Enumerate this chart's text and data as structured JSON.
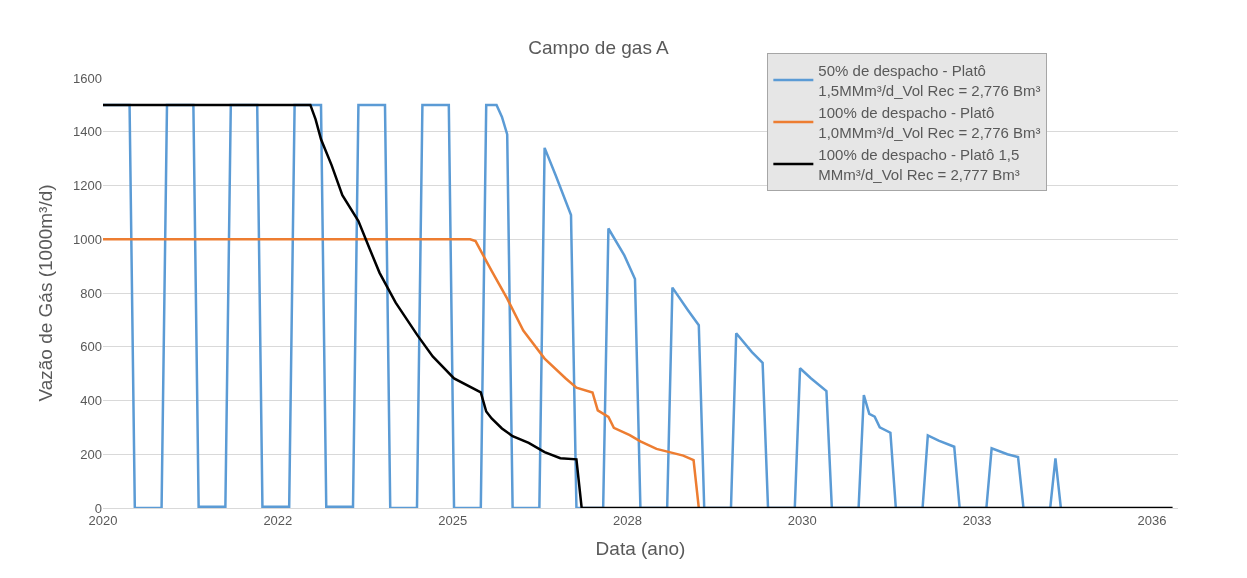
{
  "chart_data": {
    "type": "line",
    "title": "Campo de gas A",
    "xlabel": "Data (ano)",
    "ylabel": "Vazão de Gás (1000m³/d)",
    "xlim": [
      "2020-01-01",
      "2036-11-01"
    ],
    "xticks": [
      {
        "value": "2020-01-01",
        "label": "2020"
      },
      {
        "value": "2022-09-27",
        "label": "2022"
      },
      {
        "value": "2025-06-23",
        "label": "2025"
      },
      {
        "value": "2028-03-19",
        "label": "2028"
      },
      {
        "value": "2030-12-14",
        "label": "2030"
      },
      {
        "value": "2033-09-09",
        "label": "2033"
      },
      {
        "value": "2036-06-05",
        "label": "2036"
      }
    ],
    "ylim": [
      0,
      1600
    ],
    "yticks": [
      0,
      200,
      400,
      600,
      800,
      1000,
      1200,
      1400,
      1600
    ],
    "grid": "y",
    "legend": "top right",
    "marker": "none",
    "line_style": "solid",
    "series": [
      {
        "name": "50% de despacho - Platô 1,5MMm³/d_Vol Rec = 2,776 Bm³",
        "color": "#5b9bd5",
        "x": [
          "2020-01",
          "2020-06",
          "2020-07",
          "2020-12",
          "2021-01",
          "2021-06",
          "2021-07",
          "2021-12",
          "2022-01",
          "2022-06",
          "2022-07",
          "2022-12",
          "2023-01",
          "2023-06",
          "2023-07",
          "2023-12",
          "2024-01",
          "2024-06",
          "2024-07",
          "2024-12",
          "2025-01",
          "2025-06",
          "2025-07",
          "2025-12",
          "2026-01",
          "2026-03",
          "2026-04",
          "2026-05",
          "2026-06",
          "2026-11",
          "2026-12",
          "2027-02",
          "2027-05",
          "2027-06",
          "2027-11",
          "2027-12",
          "2028-03",
          "2028-05",
          "2028-06",
          "2028-11",
          "2028-12",
          "2029-03",
          "2029-05",
          "2029-06",
          "2029-11",
          "2029-12",
          "2030-03",
          "2030-05",
          "2030-06",
          "2030-11",
          "2030-12",
          "2031-02",
          "2031-05",
          "2031-06",
          "2031-11",
          "2031-12",
          "2032-01",
          "2032-02",
          "2032-03",
          "2032-05",
          "2032-06",
          "2032-11",
          "2032-12",
          "2033-02",
          "2033-05",
          "2033-06",
          "2033-11",
          "2033-12",
          "2034-03",
          "2034-05",
          "2034-06",
          "2034-11",
          "2034-12",
          "2035-01"
        ],
        "values": [
          1500,
          1500,
          0,
          0,
          1500,
          1500,
          5,
          5,
          1500,
          1500,
          5,
          5,
          1500,
          1500,
          5,
          5,
          1500,
          1500,
          0,
          0,
          1500,
          1500,
          0,
          0,
          1500,
          1500,
          1455,
          1390,
          0,
          0,
          1340,
          1240,
          1090,
          0,
          0,
          1040,
          940,
          852,
          0,
          0,
          820,
          735,
          680,
          0,
          0,
          650,
          580,
          540,
          0,
          0,
          520,
          483,
          435,
          0,
          0,
          420,
          350,
          340,
          300,
          280,
          0,
          0,
          270,
          251,
          228,
          0,
          0,
          222,
          200,
          190,
          0,
          0,
          185,
          0
        ]
      },
      {
        "name": "100% de despacho - Platô 1,0MMm³/d_Vol Rec = 2,776 Bm³",
        "color": "#ed7d31",
        "x": [
          "2020-01",
          "2025-10",
          "2025-11",
          "2026-02",
          "2026-05",
          "2026-08",
          "2026-12",
          "2027-04",
          "2027-06",
          "2027-09",
          "2027-10",
          "2027-12",
          "2028-01",
          "2028-04",
          "2028-06",
          "2028-09",
          "2028-12",
          "2029-02",
          "2029-04",
          "2029-05"
        ],
        "values": [
          1000,
          1000,
          993,
          882,
          779,
          660,
          556,
          482,
          448,
          430,
          363,
          339,
          298,
          271,
          248,
          220,
          205,
          195,
          178,
          0
        ]
      },
      {
        "name": "100% de despacho - Platô 1,5 MMm³/d_Vol Rec = 2,777 Bm³",
        "color": "#000000",
        "x": [
          "2020-01",
          "2023-04",
          "2023-05",
          "2023-06",
          "2023-08",
          "2023-10",
          "2024-01",
          "2024-03",
          "2024-05",
          "2024-08",
          "2024-12",
          "2025-03",
          "2025-07",
          "2025-12",
          "2026-01",
          "2026-02",
          "2026-04",
          "2026-06",
          "2026-09",
          "2026-12",
          "2027-03",
          "2027-06",
          "2027-07",
          "2036-10"
        ],
        "values": [
          1500,
          1500,
          1446,
          1372,
          1275,
          1164,
          1068,
          971,
          875,
          764,
          645,
          564,
          482,
          430,
          359,
          333,
          296,
          267,
          242,
          208,
          185,
          181,
          0,
          0
        ]
      }
    ]
  }
}
